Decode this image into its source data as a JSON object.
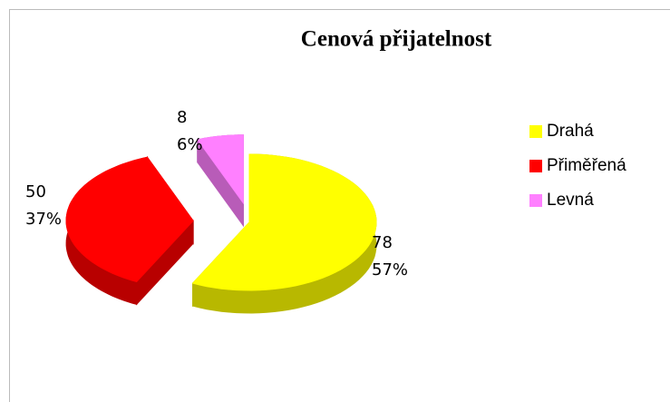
{
  "chart_data": {
    "type": "pie3d",
    "title": "Cenová přijatelnost",
    "categories": [
      "Drahá",
      "Přiměřená",
      "Levná"
    ],
    "values": [
      78,
      50,
      8
    ],
    "percent_labels": [
      "57%",
      "37%",
      "6%"
    ],
    "colors": [
      "#ffff00",
      "#ff0000",
      "#ff80ff"
    ],
    "legend": "right"
  }
}
